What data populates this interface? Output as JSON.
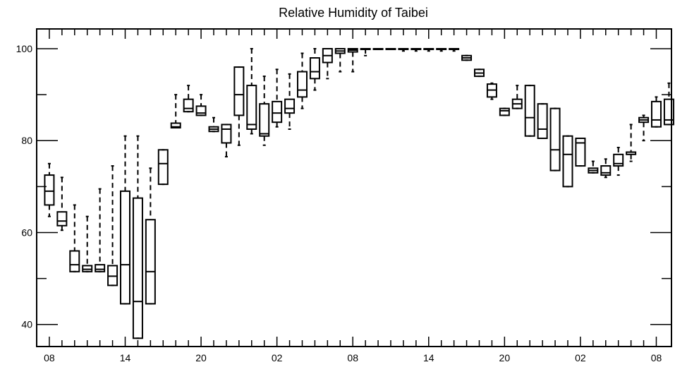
{
  "chart_data": {
    "type": "box",
    "title": "Relative Humidity of Taibei",
    "xlabel": "",
    "ylabel": "",
    "ylim": [
      35.2,
      104.3
    ],
    "yticks": [
      40,
      60,
      80,
      100
    ],
    "xtick_labels": [
      "08",
      "14",
      "20",
      "02",
      "08",
      "14",
      "20",
      "02",
      "08"
    ],
    "xtick_hours": [
      0,
      6,
      12,
      18,
      24,
      30,
      36,
      42,
      48
    ],
    "x_unit": "hours since first 08 tick",
    "boxes": [
      {
        "h": 0,
        "whislo": 63.5,
        "q1": 66.0,
        "med": 69.0,
        "q3": 72.5,
        "whishi": 75.0
      },
      {
        "h": 1,
        "whislo": 60.5,
        "q1": 61.5,
        "med": 62.5,
        "q3": 64.5,
        "whishi": 72.0
      },
      {
        "h": 2,
        "whislo": 51.5,
        "q1": 51.5,
        "med": 53.0,
        "q3": 56.0,
        "whishi": 66.0
      },
      {
        "h": 3,
        "whislo": 51.5,
        "q1": 51.5,
        "med": 52.0,
        "q3": 52.8,
        "whishi": 63.5
      },
      {
        "h": 4,
        "whislo": 51.5,
        "q1": 51.5,
        "med": 52.0,
        "q3": 53.0,
        "whishi": 69.5
      },
      {
        "h": 5,
        "whislo": 48.5,
        "q1": 48.5,
        "med": 50.5,
        "q3": 52.8,
        "whishi": 74.5
      },
      {
        "h": 6,
        "whislo": 44.5,
        "q1": 44.5,
        "med": 53.0,
        "q3": 69.0,
        "whishi": 81.0
      },
      {
        "h": 7,
        "whislo": 37.0,
        "q1": 37.0,
        "med": 45.0,
        "q3": 67.5,
        "whishi": 81.0
      },
      {
        "h": 8,
        "whislo": 44.5,
        "q1": 44.5,
        "med": 51.5,
        "q3": 62.8,
        "whishi": 74.0
      },
      {
        "h": 9,
        "whislo": 70.5,
        "q1": 70.5,
        "med": 75.0,
        "q3": 78.0,
        "whishi": 78.0
      },
      {
        "h": 10,
        "whislo": 82.8,
        "q1": 82.8,
        "med": 83.0,
        "q3": 83.8,
        "whishi": 90.0
      },
      {
        "h": 11,
        "whislo": 86.3,
        "q1": 86.3,
        "med": 87.0,
        "q3": 89.0,
        "whishi": 92.0
      },
      {
        "h": 12,
        "whislo": 85.5,
        "q1": 85.5,
        "med": 86.0,
        "q3": 87.5,
        "whishi": 90.0
      },
      {
        "h": 13,
        "whislo": 82.0,
        "q1": 82.0,
        "med": 82.5,
        "q3": 83.0,
        "whishi": 85.0
      },
      {
        "h": 14,
        "whislo": 76.5,
        "q1": 79.5,
        "med": 82.5,
        "q3": 83.5,
        "whishi": 83.5
      },
      {
        "h": 15,
        "whislo": 79.0,
        "q1": 85.5,
        "med": 90.0,
        "q3": 96.0,
        "whishi": 96.0
      },
      {
        "h": 16,
        "whislo": 81.5,
        "q1": 82.5,
        "med": 83.5,
        "q3": 92.0,
        "whishi": 100.0
      },
      {
        "h": 17,
        "whislo": 79.0,
        "q1": 81.0,
        "med": 81.5,
        "q3": 88.0,
        "whishi": 94.0
      },
      {
        "h": 18,
        "whislo": 83.0,
        "q1": 84.0,
        "med": 86.0,
        "q3": 88.5,
        "whishi": 95.5
      },
      {
        "h": 19,
        "whislo": 82.5,
        "q1": 86.0,
        "med": 87.0,
        "q3": 89.0,
        "whishi": 94.5
      },
      {
        "h": 20,
        "whislo": 87.0,
        "q1": 89.5,
        "med": 91.0,
        "q3": 95.0,
        "whishi": 99.0
      },
      {
        "h": 21,
        "whislo": 91.0,
        "q1": 93.5,
        "med": 95.0,
        "q3": 98.0,
        "whishi": 100.0
      },
      {
        "h": 22,
        "whislo": 93.5,
        "q1": 97.0,
        "med": 98.5,
        "q3": 100.0,
        "whishi": 100.0
      },
      {
        "h": 23,
        "whislo": 95.0,
        "q1": 99.0,
        "med": 99.5,
        "q3": 100.0,
        "whishi": 100.0
      },
      {
        "h": 24,
        "whislo": 95.0,
        "q1": 99.3,
        "med": 99.7,
        "q3": 100.0,
        "whishi": 100.0
      },
      {
        "h": 25,
        "whislo": 98.5,
        "q1": 100.0,
        "med": 100.0,
        "q3": 100.0,
        "whishi": 100.0
      },
      {
        "h": 26,
        "whislo": 100.0,
        "q1": 100.0,
        "med": 100.0,
        "q3": 100.0,
        "whishi": 100.0
      },
      {
        "h": 27,
        "whislo": 100.0,
        "q1": 100.0,
        "med": 100.0,
        "q3": 100.0,
        "whishi": 100.0
      },
      {
        "h": 28,
        "whislo": 99.5,
        "q1": 100.0,
        "med": 100.0,
        "q3": 100.0,
        "whishi": 100.0
      },
      {
        "h": 29,
        "whislo": 99.5,
        "q1": 100.0,
        "med": 100.0,
        "q3": 100.0,
        "whishi": 100.0
      },
      {
        "h": 30,
        "whislo": 99.5,
        "q1": 100.0,
        "med": 100.0,
        "q3": 100.0,
        "whishi": 100.0
      },
      {
        "h": 31,
        "whislo": 99.5,
        "q1": 100.0,
        "med": 100.0,
        "q3": 100.0,
        "whishi": 100.0
      },
      {
        "h": 32,
        "whislo": 99.5,
        "q1": 100.0,
        "med": 100.0,
        "q3": 100.0,
        "whishi": 100.0
      },
      {
        "h": 33,
        "whislo": 97.5,
        "q1": 97.5,
        "med": 98.0,
        "q3": 98.5,
        "whishi": 98.5
      },
      {
        "h": 34,
        "whislo": 94.0,
        "q1": 94.0,
        "med": 94.7,
        "q3": 95.5,
        "whishi": 95.5
      },
      {
        "h": 35,
        "whislo": 89.0,
        "q1": 89.5,
        "med": 91.0,
        "q3": 92.3,
        "whishi": 92.5
      },
      {
        "h": 36,
        "whislo": 85.5,
        "q1": 85.5,
        "med": 86.5,
        "q3": 87.0,
        "whishi": 87.0
      },
      {
        "h": 37,
        "whislo": 87.0,
        "q1": 87.0,
        "med": 88.0,
        "q3": 89.0,
        "whishi": 92.0
      },
      {
        "h": 38,
        "whislo": 81.0,
        "q1": 81.0,
        "med": 85.0,
        "q3": 92.0,
        "whishi": 92.0
      },
      {
        "h": 39,
        "whislo": 80.5,
        "q1": 80.5,
        "med": 82.5,
        "q3": 88.0,
        "whishi": 88.0
      },
      {
        "h": 40,
        "whislo": 73.5,
        "q1": 73.5,
        "med": 78.0,
        "q3": 87.0,
        "whishi": 87.0
      },
      {
        "h": 41,
        "whislo": 70.0,
        "q1": 70.0,
        "med": 77.0,
        "q3": 81.0,
        "whishi": 81.0
      },
      {
        "h": 42,
        "whislo": 74.5,
        "q1": 74.5,
        "med": 79.5,
        "q3": 80.5,
        "whishi": 80.5
      },
      {
        "h": 43,
        "whislo": 73.0,
        "q1": 73.0,
        "med": 73.5,
        "q3": 74.0,
        "whishi": 75.5
      },
      {
        "h": 44,
        "whislo": 72.0,
        "q1": 72.5,
        "med": 73.0,
        "q3": 74.5,
        "whishi": 76.0
      },
      {
        "h": 45,
        "whislo": 72.5,
        "q1": 74.5,
        "med": 75.0,
        "q3": 77.0,
        "whishi": 78.5
      },
      {
        "h": 46,
        "whislo": 75.5,
        "q1": 77.0,
        "med": 77.5,
        "q3": 77.5,
        "whishi": 83.5
      },
      {
        "h": 47,
        "whislo": 80.0,
        "q1": 84.0,
        "med": 84.5,
        "q3": 85.0,
        "whishi": 85.5
      },
      {
        "h": 48,
        "whislo": 83.0,
        "q1": 83.0,
        "med": 84.5,
        "q3": 88.5,
        "whishi": 89.5
      },
      {
        "h": 49,
        "whislo": 83.5,
        "q1": 83.5,
        "med": 84.5,
        "q3": 89.0,
        "whishi": 92.5
      }
    ]
  }
}
